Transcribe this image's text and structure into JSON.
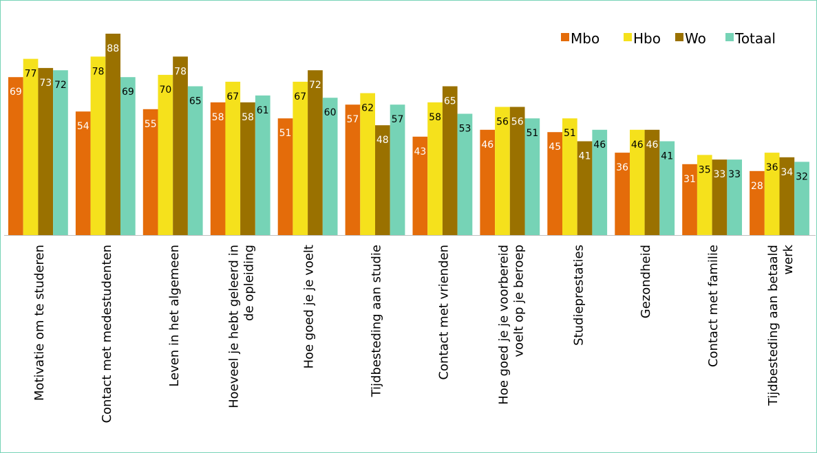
{
  "chart_data": {
    "type": "bar",
    "title": "",
    "xlabel": "",
    "ylabel": "",
    "ylim": [
      0,
      90
    ],
    "grid": false,
    "legend": "top-right",
    "categories": [
      [
        "Motivatie om te studeren"
      ],
      [
        "Contact met medestudenten"
      ],
      [
        "Leven in het algemeen"
      ],
      [
        "Hoeveel je hebt geleerd in",
        "de opleiding"
      ],
      [
        "Hoe goed je je voelt"
      ],
      [
        "Tijdbesteding aan studie"
      ],
      [
        "Contact met vrienden"
      ],
      [
        "Hoe goed je je voorbereid",
        "voelt op je beroep"
      ],
      [
        "Studieprestaties"
      ],
      [
        "Gezondheid"
      ],
      [
        "Contact met familie"
      ],
      [
        "Tijdbesteding aan betaald",
        "werk"
      ]
    ],
    "series": [
      {
        "name": "Mbo",
        "color": "#E46C0A",
        "label_color": "#ffffff",
        "values": [
          69,
          54,
          55,
          58,
          51,
          57,
          43,
          46,
          45,
          36,
          31,
          28
        ]
      },
      {
        "name": "Hbo",
        "color": "#F5E11C",
        "label_color": "#000000",
        "values": [
          77,
          78,
          70,
          67,
          67,
          62,
          58,
          56,
          51,
          46,
          35,
          36
        ]
      },
      {
        "name": "Wo",
        "color": "#9A7100",
        "label_color": "#ffffff",
        "values": [
          73,
          88,
          78,
          58,
          72,
          48,
          65,
          56,
          41,
          46,
          33,
          34
        ]
      },
      {
        "name": "Totaal",
        "color": "#76D3B6",
        "label_color": "#000000",
        "values": [
          72,
          69,
          65,
          61,
          60,
          57,
          53,
          51,
          46,
          41,
          33,
          32
        ]
      }
    ],
    "frame_color": "#76D3B6",
    "axis_color": "#BFBFBF"
  }
}
